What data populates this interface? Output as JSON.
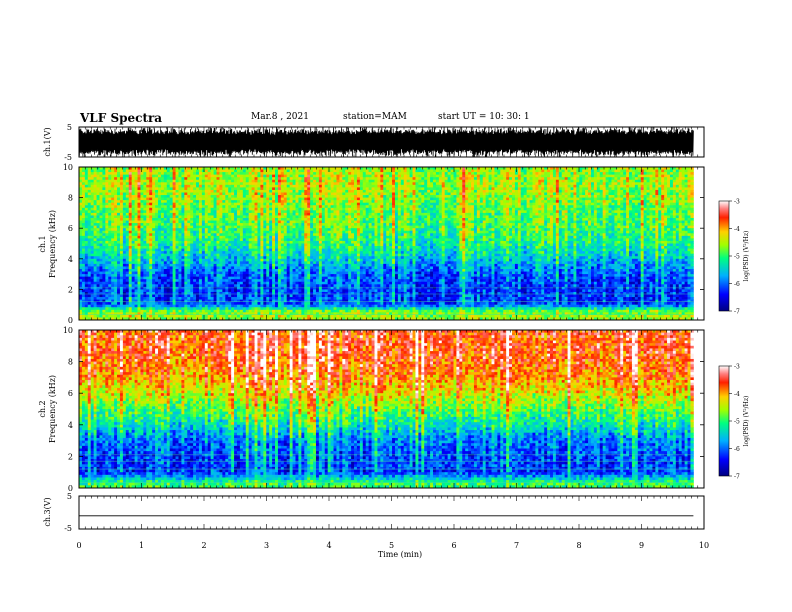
{
  "header": {
    "title": "VLF Spectra",
    "date": "Mar.8 , 2021",
    "station": "station=MAM",
    "start": "start UT = 10: 30: 1"
  },
  "chart_data": [
    {
      "type": "line",
      "panel": "ch1-waveform",
      "ylabel": "ch.1(V)",
      "ylim": [
        -5,
        5
      ],
      "xlim": [
        0,
        10
      ],
      "y_tick_labels": [
        "5",
        "-5"
      ],
      "color": "#000000"
    },
    {
      "type": "heatmap",
      "panel": "ch1-spectrogram",
      "ylabel_line1": "ch.1",
      "ylabel_line2": "Frequency (kHz)",
      "ylim": [
        0,
        10
      ],
      "y_tick_labels": [
        "0",
        "2",
        "4",
        "6",
        "8",
        "10"
      ],
      "xlim": [
        0,
        9.83
      ],
      "colorbar": {
        "label": "log(PSD) (V²/Hz)",
        "range": [
          -7,
          -3
        ],
        "tick_labels": [
          "-7",
          "-6",
          "-5",
          "-4",
          "-3"
        ]
      },
      "frequency_profile_log_psd": [
        {
          "f": 0.3,
          "v": -4.6
        },
        {
          "f": 0.6,
          "v": -4.8
        },
        {
          "f": 1.0,
          "v": -6.1
        },
        {
          "f": 2.0,
          "v": -6.2
        },
        {
          "f": 3.0,
          "v": -6.0
        },
        {
          "f": 4.0,
          "v": -5.5
        },
        {
          "f": 5.0,
          "v": -5.1
        },
        {
          "f": 6.0,
          "v": -4.9
        },
        {
          "f": 7.0,
          "v": -4.8
        },
        {
          "f": 8.0,
          "v": -4.6
        },
        {
          "f": 9.0,
          "v": -4.5
        },
        {
          "f": 10.0,
          "v": -4.6
        }
      ]
    },
    {
      "type": "heatmap",
      "panel": "ch2-spectrogram",
      "ylabel_line1": "ch.2",
      "ylabel_line2": "Frequency (kHz)",
      "ylim": [
        0,
        10
      ],
      "y_tick_labels": [
        "0",
        "2",
        "4",
        "6",
        "8",
        "10"
      ],
      "xlim": [
        0,
        9.83
      ],
      "colorbar": {
        "label": "log(PSD) (V²/Hz)",
        "range": [
          -7,
          -3
        ],
        "tick_labels": [
          "-7",
          "-6",
          "-5",
          "-4",
          "-3"
        ]
      },
      "frequency_profile_log_psd": [
        {
          "f": 0.3,
          "v": -5.0
        },
        {
          "f": 1.0,
          "v": -6.2
        },
        {
          "f": 2.0,
          "v": -6.1
        },
        {
          "f": 3.0,
          "v": -5.9
        },
        {
          "f": 4.0,
          "v": -5.3
        },
        {
          "f": 5.0,
          "v": -4.8
        },
        {
          "f": 6.0,
          "v": -4.3
        },
        {
          "f": 7.0,
          "v": -3.9
        },
        {
          "f": 8.0,
          "v": -3.7
        },
        {
          "f": 9.0,
          "v": -3.6
        },
        {
          "f": 10.0,
          "v": -3.6
        }
      ]
    },
    {
      "type": "line",
      "panel": "ch3-waveform",
      "ylabel": "ch.3(V)",
      "ylim": [
        -5,
        5
      ],
      "y_tick_labels": [
        "5",
        "-5"
      ],
      "xlim": [
        0,
        10
      ],
      "xlabel": "Time (min)",
      "x_tick_labels": [
        "0",
        "1",
        "2",
        "3",
        "4",
        "5",
        "6",
        "7",
        "8",
        "9",
        "10"
      ],
      "series": [
        {
          "x": [
            0,
            9.83
          ],
          "y": [
            -1,
            -1
          ]
        }
      ],
      "color": "#000000"
    }
  ]
}
